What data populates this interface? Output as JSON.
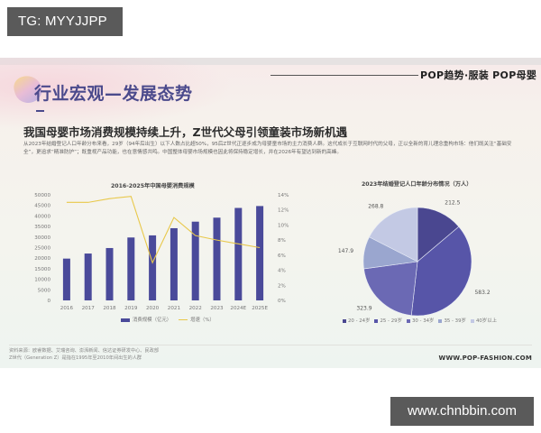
{
  "overlay": {
    "top_tag": "TG: MYYJJPP",
    "bottom_tag": "www.chnbbin.com"
  },
  "slide": {
    "section_title": "行业宏观—发展态势",
    "brand": "POP趋势·服装  POP母婴",
    "headline": "我国母婴市场消费规模持续上升，Z世代父母引领童装市场新机遇",
    "description": "从2023年结婚登记人口年龄分布来看，29岁（94年后出生）以下人数占比超50%，95后Z世代正逐步成为母婴童市场的主力消费人群。这代成长于互联网时代的父母，正以全新的育儿理念重构市场：他们既关注“基础安全”，更追求“精准防护”；既重视产品功能，也在意情感共鸣。中国整体母婴市场规模也因此将保持稳定增长，并在2026年有望达到新的高峰。",
    "source_line1": "资料来源：欧睿数据、艾瑞咨询、澎湃新闻、信达证券研发中心、民政部",
    "source_line2": "Z世代（Generation Z）是指在1995年至2010年间出生的人群",
    "website": "WWW.POP-FASHION.COM"
  },
  "colors": {
    "bar": "#4a4a9a",
    "line": "#e8c84a",
    "title": "#4b4a8c",
    "pie": [
      "#4a4790",
      "#5755a8",
      "#6b69b4",
      "#9aa6cf",
      "#c3c9e4"
    ]
  },
  "chart_data": [
    {
      "type": "bar",
      "title": "2016-2025年中国母婴消费规模",
      "categories": [
        "2016",
        "2017",
        "2018",
        "2019",
        "2020",
        "2021",
        "2022",
        "2023",
        "2024E",
        "2025E"
      ],
      "series": [
        {
          "name": "消费规模（亿元）",
          "type": "bar",
          "axis": "left",
          "values": [
            19800,
            22200,
            24800,
            29800,
            30800,
            34200,
            37300,
            39200,
            43800,
            44700
          ]
        },
        {
          "name": "增速（%）",
          "type": "line",
          "axis": "right",
          "values": [
            13.0,
            13.0,
            13.5,
            13.8,
            5.0,
            11.0,
            8.6,
            8.0,
            7.5,
            7.0
          ]
        }
      ],
      "y_left": {
        "ticks": [
          "0",
          "5000",
          "10000",
          "15000",
          "20000",
          "25000",
          "30000",
          "35000",
          "40000",
          "45000",
          "50000"
        ],
        "ylim": [
          0,
          50000
        ]
      },
      "y_right": {
        "ticks": [
          "0%",
          "2%",
          "4%",
          "6%",
          "8%",
          "10%",
          "12%",
          "14%"
        ],
        "ylim": [
          0,
          14
        ]
      },
      "legend": [
        "消费规模（亿元）",
        "增速（%）"
      ],
      "legend_position": "bottom",
      "grid": false
    },
    {
      "type": "pie",
      "title": "2023年结婚登记人口年龄分布情况（万人）",
      "categories": [
        "20 - 24岁",
        "25 - 29岁",
        "30 - 34岁",
        "35 - 39岁",
        "40岁以上"
      ],
      "values": [
        212.5,
        583.2,
        323.9,
        147.9,
        268.8
      ],
      "labels": [
        "212.5",
        "583.2",
        "323.9",
        "147.9",
        "268.8"
      ],
      "legend_position": "bottom"
    }
  ],
  "legends": {
    "bar": {
      "bar_label": "消费规模（亿元）",
      "line_label": "增速（%）"
    },
    "pie": [
      "20 - 24岁",
      "25 - 29岁",
      "30 - 34岁",
      "35 - 39岁",
      "40岁以上"
    ]
  }
}
